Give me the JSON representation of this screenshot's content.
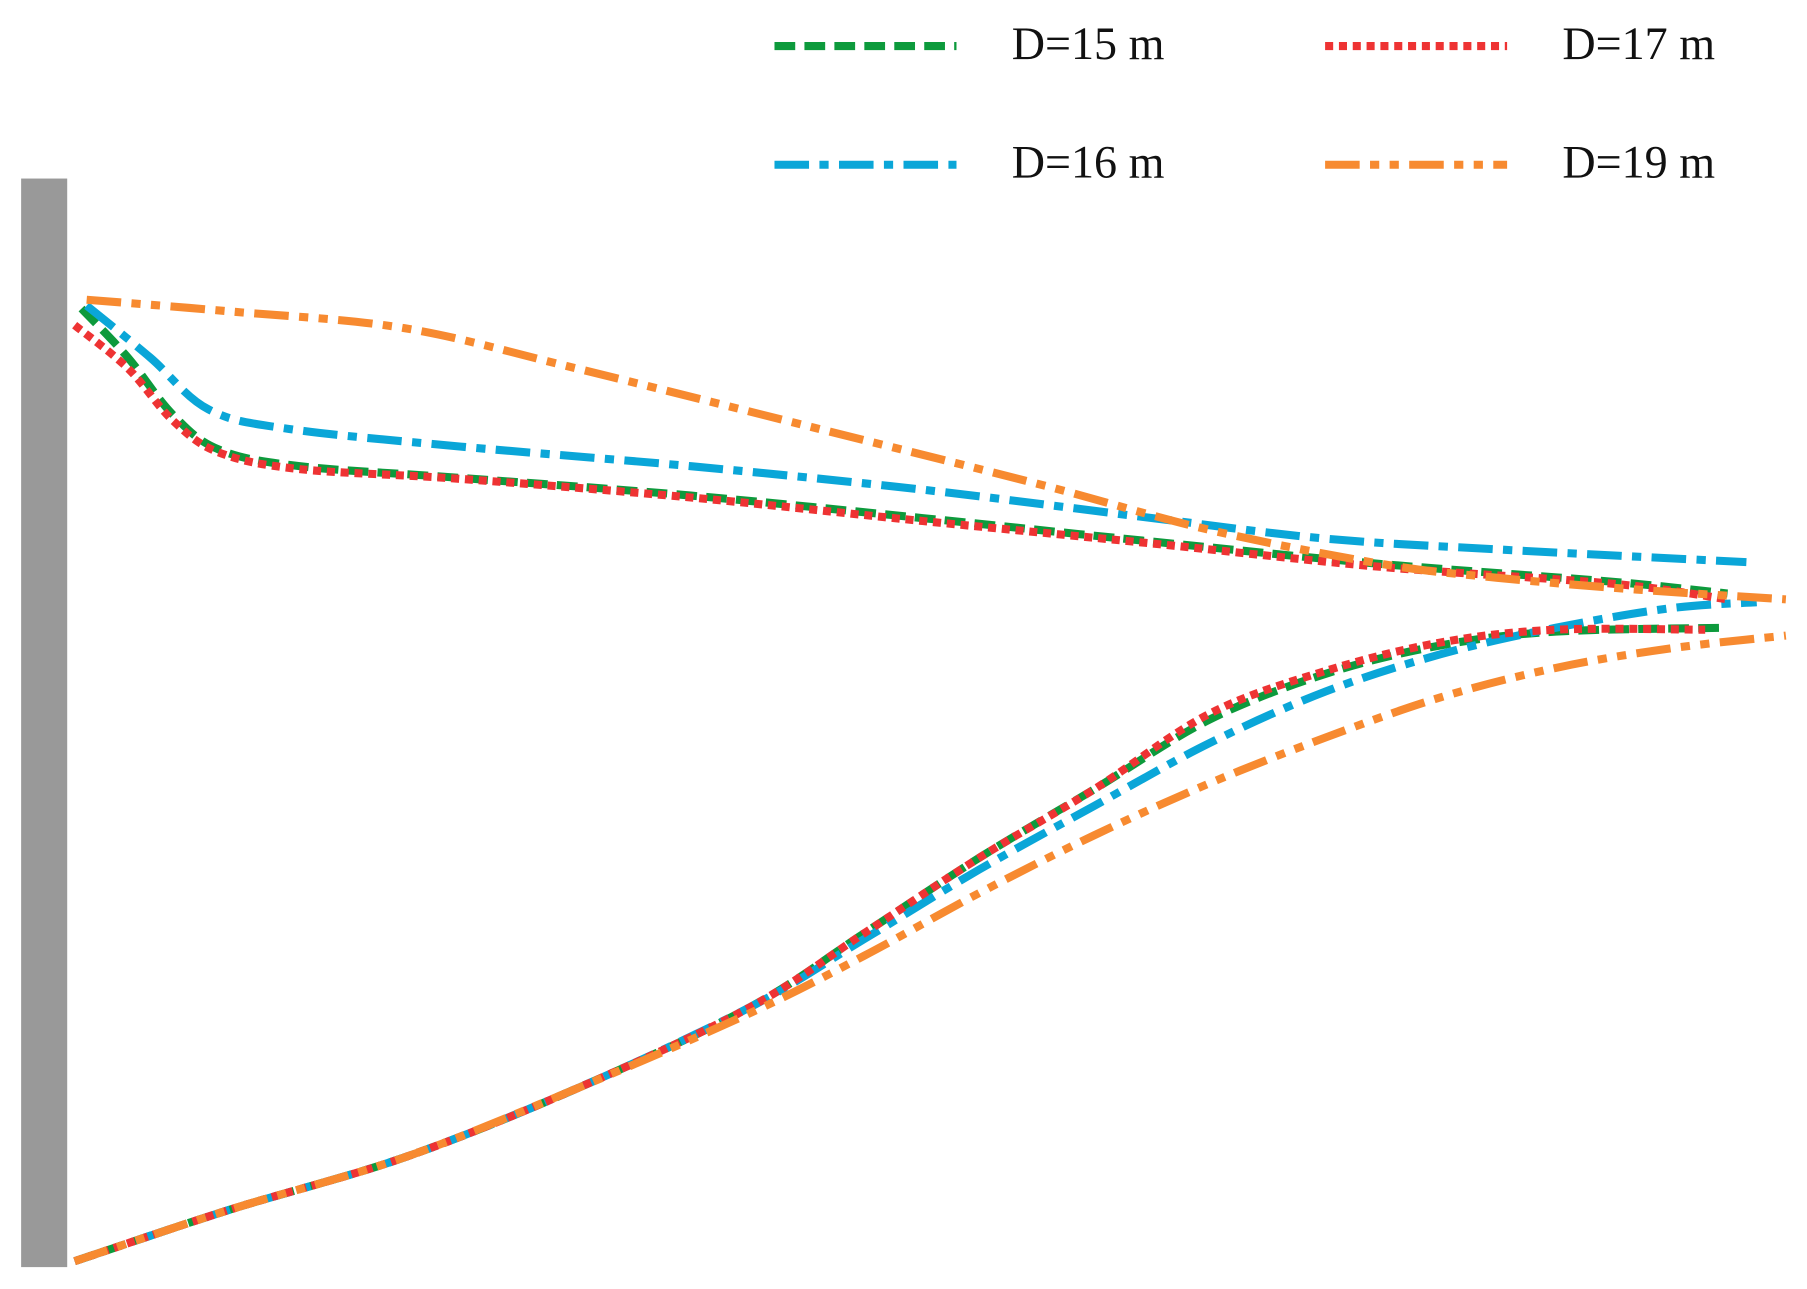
{
  "chart_data": {
    "type": "line",
    "xlim": [
      0,
      100
    ],
    "ylim": [
      0,
      100
    ],
    "series": [
      {
        "name": "D=15 m",
        "color": "#0d9a3c",
        "line_style": "dashed",
        "x": [
          0.7,
          3.4,
          6.0,
          8.7,
          13.4,
          22.8,
          36.2,
          49.7,
          63.1,
          76.5,
          89.9,
          96.6,
          null,
          0.3,
          9.4,
          19.5,
          29.5,
          39.6,
          46.3,
          53.0,
          59.7,
          66.4,
          73.2,
          79.9,
          86.6,
          96.6
        ],
        "values": [
          97.9,
          92.9,
          87.1,
          83.5,
          81.8,
          80.6,
          78.8,
          76.5,
          74.1,
          71.8,
          70.0,
          68.8,
          null,
          0.6,
          5.9,
          11.2,
          18.2,
          26.5,
          34.1,
          41.8,
          48.8,
          55.9,
          60.6,
          63.5,
          64.9,
          65.3
        ]
      },
      {
        "name": "D=16 m",
        "color": "#0aa6d8",
        "line_style": "dash-dot",
        "x": [
          1.0,
          4.7,
          8.1,
          12.8,
          22.8,
          36.2,
          49.7,
          63.1,
          73.2,
          83.2,
          97.7,
          null,
          0.3,
          9.4,
          19.5,
          29.5,
          39.6,
          46.3,
          53.0,
          59.7,
          66.4,
          73.2,
          79.9,
          86.6,
          93.3,
          98.3
        ],
        "values": [
          98.2,
          92.9,
          87.6,
          85.6,
          83.8,
          81.8,
          79.4,
          76.5,
          74.4,
          73.3,
          72.0,
          null,
          0.6,
          5.9,
          11.2,
          18.2,
          26.5,
          33.5,
          40.6,
          47.1,
          53.5,
          58.8,
          62.6,
          65.3,
          67.3,
          67.9
        ]
      },
      {
        "name": "D=17 m",
        "color": "#ee3333",
        "line_style": "dotted",
        "x": [
          0.3,
          3.4,
          6.0,
          8.7,
          13.4,
          22.8,
          36.2,
          49.7,
          63.1,
          76.5,
          89.9,
          96.6,
          null,
          0.3,
          9.4,
          19.5,
          29.5,
          39.6,
          46.3,
          53.0,
          59.7,
          66.4,
          73.2,
          79.9,
          86.6,
          95.3
        ],
        "values": [
          96.2,
          91.8,
          86.5,
          83.2,
          81.5,
          80.5,
          78.6,
          76.2,
          73.9,
          71.5,
          69.8,
          68.2,
          null,
          0.6,
          5.9,
          11.2,
          18.2,
          26.5,
          34.1,
          41.8,
          48.8,
          56.5,
          60.9,
          63.8,
          65.1,
          65.1
        ]
      },
      {
        "name": "D=19 m",
        "color": "#f78a30",
        "line_style": "dash-dot-dot",
        "x": [
          1.0,
          9.4,
          19.5,
          29.5,
          43.0,
          56.4,
          66.4,
          76.5,
          83.2,
          91.3,
          100,
          null,
          0.3,
          9.4,
          19.5,
          29.5,
          39.6,
          46.3,
          53.0,
          59.7,
          66.4,
          73.2,
          79.9,
          86.6,
          93.3,
          100
        ],
        "values": [
          98.8,
          97.6,
          95.9,
          91.8,
          85.9,
          80.0,
          75.3,
          71.8,
          70.4,
          69.2,
          68.2,
          null,
          0.6,
          5.9,
          11.2,
          18.2,
          25.9,
          31.8,
          38.2,
          44.1,
          49.4,
          54.1,
          58.2,
          61.2,
          63.2,
          64.5
        ]
      }
    ]
  }
}
